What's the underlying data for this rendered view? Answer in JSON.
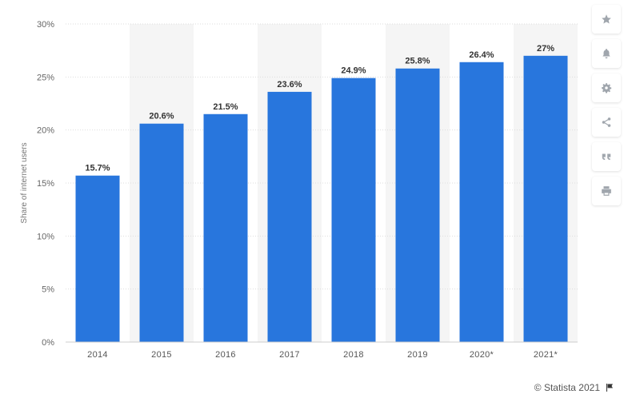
{
  "chart_data": {
    "type": "bar",
    "categories": [
      "2014",
      "2015",
      "2016",
      "2017",
      "2018",
      "2019",
      "2020*",
      "2021*"
    ],
    "values": [
      15.7,
      20.6,
      21.5,
      23.6,
      24.9,
      25.8,
      26.4,
      27
    ],
    "data_labels": [
      "15.7%",
      "20.6%",
      "21.5%",
      "23.6%",
      "24.9%",
      "25.8%",
      "26.4%",
      "27%"
    ],
    "title": "",
    "xlabel": "",
    "ylabel": "Share of internet users",
    "ylim": [
      0,
      30
    ],
    "yticks": [
      0,
      5,
      10,
      15,
      20,
      25,
      30
    ],
    "ytick_labels": [
      "0%",
      "5%",
      "10%",
      "15%",
      "20%",
      "25%",
      "30%"
    ],
    "grid": true,
    "bar_color": "#2876dd",
    "alternate_band_color": "#f5f5f5"
  },
  "toolbar": {
    "items": [
      {
        "icon": "star-icon"
      },
      {
        "icon": "bell-icon"
      },
      {
        "icon": "gear-icon"
      },
      {
        "icon": "share-icon"
      },
      {
        "icon": "quote-icon"
      },
      {
        "icon": "print-icon"
      }
    ],
    "icon_color": "#a0a6ad"
  },
  "footer": {
    "copyright": "© Statista 2021",
    "flag_icon": "flag-icon"
  }
}
